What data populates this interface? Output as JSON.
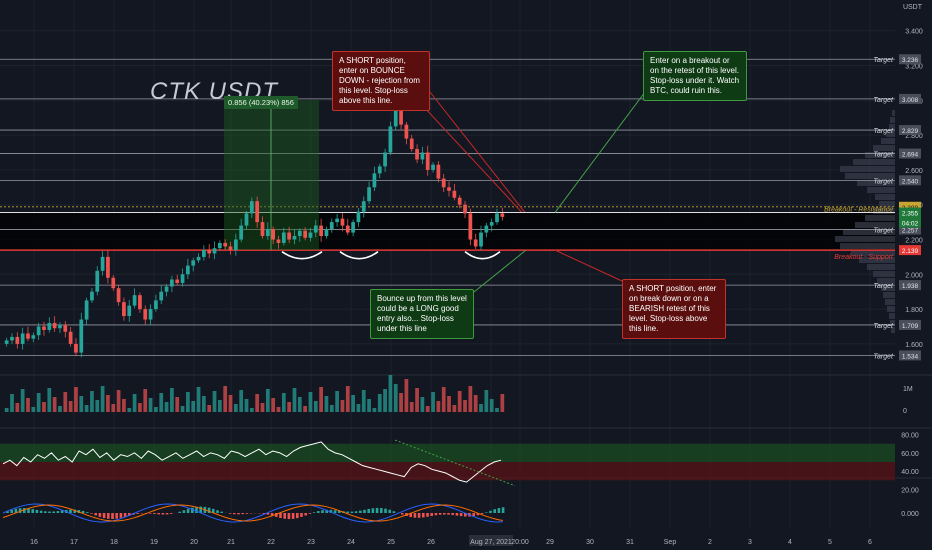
{
  "symbol_title": "CTK USDT",
  "currency": "USDT",
  "measure_label": "0.856 (40.23%) 856",
  "colors": {
    "bg": "#131722",
    "grid": "#1e222d",
    "up": "#26a69a",
    "down": "#ef5350",
    "green": "#2e7d32",
    "red": "#b71c1c",
    "line": "#c7cad3"
  },
  "price_axis": {
    "ticks": [
      3.4,
      3.2,
      3.0,
      2.8,
      2.6,
      2.4,
      2.2,
      2.0,
      1.8,
      1.6
    ],
    "tick_labels": [
      "3.400",
      "3.200",
      "3.000",
      "2.800",
      "2.600",
      "2.400",
      "2.200",
      "2.000",
      "1.800",
      "1.600"
    ],
    "top_label": "3.400"
  },
  "targets": [
    {
      "label": "Target",
      "value": 3.236,
      "tag": "3.236"
    },
    {
      "label": "Target",
      "value": 3.008,
      "tag": "3.008"
    },
    {
      "label": "Target",
      "value": 2.829,
      "tag": "2.829"
    },
    {
      "label": "Target",
      "value": 2.694,
      "tag": "2.694"
    },
    {
      "label": "Target",
      "value": 2.54,
      "tag": "2.540"
    },
    {
      "label": "Target",
      "value": 2.257,
      "tag": "2.257"
    },
    {
      "label": "Target",
      "value": 1.938,
      "tag": "1.938"
    },
    {
      "label": "Target",
      "value": 1.709,
      "tag": "1.709"
    },
    {
      "label": "Target",
      "value": 1.534,
      "tag": "1.534"
    }
  ],
  "levels": {
    "resistance": {
      "label": "Breakout - Resistance",
      "value": 2.355,
      "tag": "2.355",
      "countdown": "04:02"
    },
    "support": {
      "label": "Breakout - Support",
      "value": 2.139,
      "tag": "2.139"
    },
    "dotted": {
      "value": 2.388,
      "tag": "2.388"
    }
  },
  "time_axis": {
    "labels": [
      "16",
      "17",
      "18",
      "19",
      "20",
      "21",
      "22",
      "23",
      "24",
      "25",
      "26",
      "Aug 27, 2021",
      "20:00",
      "29",
      "30",
      "31",
      "Sep",
      "2",
      "3",
      "4",
      "5",
      "6"
    ]
  },
  "notes": [
    {
      "id": "short-bounce",
      "color": "red",
      "text": "A SHORT position, enter on BOUNCE DOWN - rejection from this level. Stop-loss above this line."
    },
    {
      "id": "breakout-long",
      "color": "green",
      "text": "Enter on a breakout or on the retest of this level. Stop-loss under it. Watch BTC, could ruin this."
    },
    {
      "id": "bounce-long",
      "color": "green",
      "text": "Bounce up from this level could be a LONG good entry also... Stop-loss under this line"
    },
    {
      "id": "short-breakdown",
      "color": "red",
      "text": "A SHORT position, enter on break down or on a BEARISH retest of this level. Stop-loss above this line."
    }
  ],
  "volume_axis": {
    "labels": [
      "1M",
      "0"
    ]
  },
  "rsi_axis": {
    "labels": [
      "80.00",
      "60.00",
      "40.00",
      "20.00"
    ]
  },
  "macd_axis": {
    "labels": [
      "0.000"
    ]
  },
  "chart_data": [
    {
      "type": "candlestick",
      "title": "CTK USDT",
      "ylabel": "USDT",
      "ylim": [
        1.45,
        3.45
      ],
      "close": [
        1.62,
        1.64,
        1.6,
        1.66,
        1.63,
        1.65,
        1.7,
        1.68,
        1.72,
        1.69,
        1.71,
        1.67,
        1.6,
        1.55,
        1.74,
        1.85,
        1.9,
        2.02,
        2.1,
        1.98,
        1.92,
        1.84,
        1.76,
        1.82,
        1.88,
        1.8,
        1.74,
        1.8,
        1.85,
        1.9,
        1.93,
        1.97,
        1.95,
        2.0,
        2.05,
        2.08,
        2.1,
        2.14,
        2.12,
        2.15,
        2.18,
        2.16,
        2.14,
        2.2,
        2.28,
        2.35,
        2.42,
        2.3,
        2.22,
        2.26,
        2.2,
        2.18,
        2.24,
        2.2,
        2.22,
        2.25,
        2.21,
        2.24,
        2.28,
        2.22,
        2.26,
        2.3,
        2.32,
        2.28,
        2.24,
        2.3,
        2.36,
        2.42,
        2.5,
        2.58,
        2.62,
        2.7,
        2.85,
        2.95,
        2.86,
        2.78,
        2.72,
        2.66,
        2.7,
        2.6,
        2.63,
        2.55,
        2.5,
        2.48,
        2.44,
        2.4,
        2.35,
        2.2,
        2.16,
        2.24,
        2.28,
        2.3,
        2.35,
        2.33
      ]
    },
    {
      "type": "bar",
      "name": "Volume",
      "note": "volume histogram, ~0–1.2M"
    },
    {
      "type": "line",
      "name": "RSI",
      "ylim": [
        20,
        80
      ],
      "bands": [
        [
          60,
          70
        ],
        [
          30,
          50
        ]
      ],
      "values": [
        48,
        52,
        46,
        55,
        50,
        58,
        54,
        60,
        52,
        56,
        50,
        62,
        58,
        64,
        55,
        60,
        52,
        58,
        56,
        60,
        54,
        62,
        58,
        52,
        56,
        60,
        54,
        58,
        62,
        56,
        60,
        58,
        54,
        62,
        60,
        56,
        60,
        64,
        58,
        62,
        60,
        56,
        62,
        66,
        68,
        70,
        72,
        64,
        60,
        58,
        54,
        50,
        46,
        44,
        42,
        40,
        38,
        36,
        34,
        44,
        48,
        46,
        42,
        40,
        38,
        34,
        30,
        28,
        34,
        40,
        46,
        50,
        52
      ]
    },
    {
      "type": "bar",
      "name": "MACD",
      "ylim": [
        -0.06,
        0.06
      ]
    }
  ]
}
